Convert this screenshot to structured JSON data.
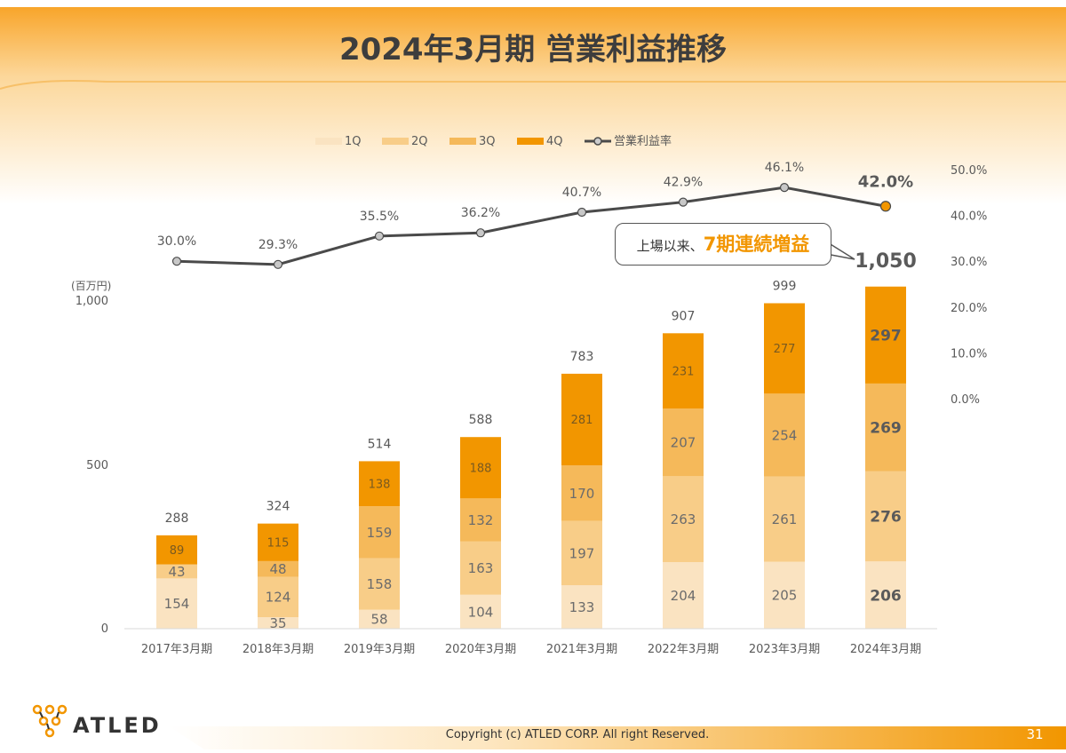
{
  "page": {
    "title": "2024年3月期 営業利益推移",
    "callout": {
      "prefix": "上場以来、",
      "emphasis": "7期連続増益"
    },
    "brand": "ATLED",
    "copyright": "Copyright (c)  ATLED CORP. All right Reserved.",
    "page_number": "31"
  },
  "colors": {
    "q1": "#fae3c1",
    "q2": "#f8cd88",
    "q3": "#f5b95a",
    "q4": "#f29600",
    "line": "#4a4a4a",
    "highlight_marker": "#f29600",
    "header_gradient": "#f8a52a",
    "text": "#595959"
  },
  "chart_data": {
    "type": "bar",
    "stacked": true,
    "categories": [
      "2017年3月期",
      "2018年3月期",
      "2019年3月期",
      "2020年3月期",
      "2021年3月期",
      "2022年3月期",
      "2023年3月期",
      "2024年3月期"
    ],
    "series": [
      {
        "name": "1Q",
        "values": [
          154,
          35,
          58,
          104,
          133,
          204,
          205,
          206
        ]
      },
      {
        "name": "2Q",
        "values": [
          43,
          124,
          158,
          163,
          197,
          263,
          261,
          276
        ]
      },
      {
        "name": "3Q",
        "values": [
          0,
          48,
          159,
          132,
          170,
          207,
          254,
          269
        ]
      },
      {
        "name": "4Q",
        "values": [
          89,
          115,
          138,
          188,
          281,
          231,
          277,
          297
        ]
      }
    ],
    "totals": [
      "288",
      "324",
      "514",
      "588",
      "783",
      "907",
      "999",
      "1,050"
    ],
    "line_series": {
      "name": "営業利益率",
      "values": [
        30.0,
        29.3,
        35.5,
        36.2,
        40.7,
        42.9,
        46.1,
        42.0
      ],
      "labels": [
        "30.0%",
        "29.3%",
        "35.5%",
        "36.2%",
        "40.7%",
        "42.9%",
        "46.1%",
        "42.0%"
      ]
    },
    "y_left": {
      "unit": "(百万円)",
      "ticks": [
        "0",
        "500",
        "1,000"
      ],
      "range": [
        0,
        1000
      ]
    },
    "y_right": {
      "ticks": [
        "0.0%",
        "10.0%",
        "20.0%",
        "30.0%",
        "40.0%",
        "50.0%"
      ],
      "range": [
        0,
        50
      ]
    },
    "legend": [
      "1Q",
      "2Q",
      "3Q",
      "4Q",
      "営業利益率"
    ],
    "legend_position": "top",
    "grid": false,
    "highlight_last": true
  }
}
